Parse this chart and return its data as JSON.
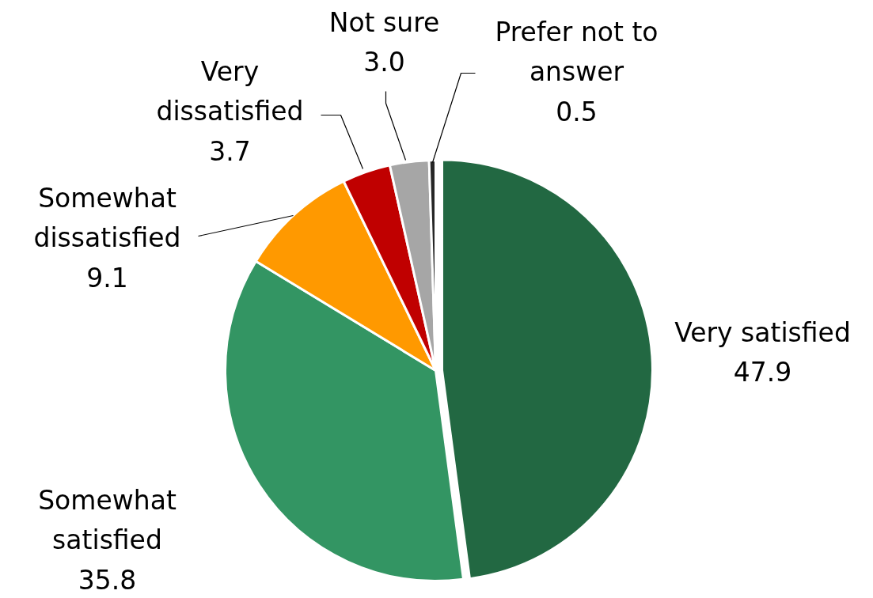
{
  "chart_data": {
    "type": "pie",
    "categories": [
      "Very satisfied",
      "Somewhat satisfied",
      "Somewhat dissatisfied",
      "Very dissatisfied",
      "Not sure",
      "Prefer not to answer"
    ],
    "values": [
      47.9,
      35.8,
      9.1,
      3.7,
      3.0,
      0.5
    ],
    "colors": [
      "#226842",
      "#339563",
      "#ff9900",
      "#c00000",
      "#a6a6a6",
      "#262626"
    ],
    "value_labels": [
      "47.9",
      "35.8",
      "9.1",
      "3.7",
      "3.0",
      "0.5"
    ]
  }
}
